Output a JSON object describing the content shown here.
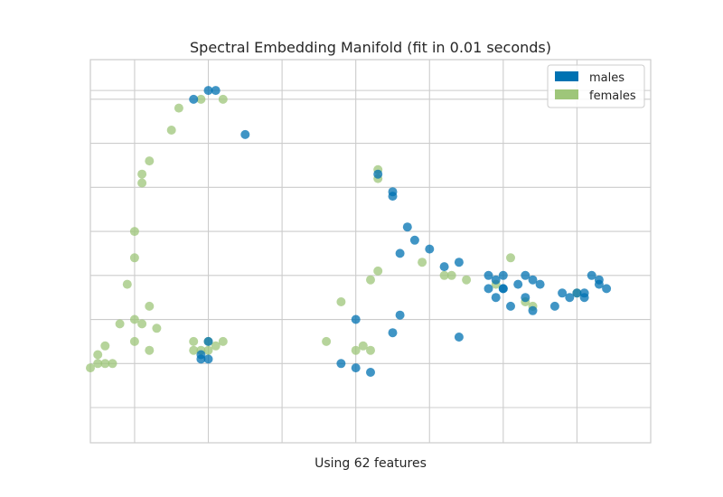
{
  "chart_data": {
    "type": "scatter",
    "title": "Spectral Embedding Manifold (fit in 0.01 seconds)",
    "xlabel": "Using 62 features",
    "ylabel": "",
    "xlim": [
      -1,
      6.6
    ],
    "ylim": [
      -0.9,
      7.8
    ],
    "x_grid_values": [
      -0.4,
      0.6,
      1.6,
      2.6,
      3.6,
      4.6,
      5.6
    ],
    "y_grid_values": [
      -0.1,
      0.9,
      1.9,
      2.9,
      3.9,
      4.9,
      5.9,
      6.9,
      7.1
    ],
    "grid": true,
    "tick_labels_shown": false,
    "legend_position": "top-right",
    "series": [
      {
        "name": "males",
        "color": "#0072b2",
        "points": [
          [
            0.4,
            6.9
          ],
          [
            0.6,
            7.1
          ],
          [
            0.7,
            7.1
          ],
          [
            1.1,
            6.1
          ],
          [
            2.9,
            5.2
          ],
          [
            3.1,
            4.7
          ],
          [
            3.1,
            4.8
          ],
          [
            3.3,
            4.0
          ],
          [
            3.4,
            3.7
          ],
          [
            3.2,
            3.4
          ],
          [
            3.6,
            3.5
          ],
          [
            3.8,
            3.1
          ],
          [
            4.0,
            3.2
          ],
          [
            4.6,
            2.6
          ],
          [
            4.4,
            2.9
          ],
          [
            4.5,
            2.8
          ],
          [
            4.6,
            2.9
          ],
          [
            4.9,
            2.9
          ],
          [
            5.0,
            2.8
          ],
          [
            4.9,
            2.4
          ],
          [
            5.1,
            2.7
          ],
          [
            4.6,
            2.6
          ],
          [
            4.5,
            2.4
          ],
          [
            4.4,
            2.6
          ],
          [
            5.3,
            2.2
          ],
          [
            5.0,
            2.1
          ],
          [
            4.7,
            2.2
          ],
          [
            4.8,
            2.7
          ],
          [
            5.5,
            2.4
          ],
          [
            5.7,
            2.5
          ],
          [
            6.0,
            2.6
          ],
          [
            5.9,
            2.8
          ],
          [
            5.6,
            2.5
          ],
          [
            5.8,
            2.9
          ],
          [
            4.0,
            1.5
          ],
          [
            3.1,
            1.6
          ],
          [
            3.2,
            2.0
          ],
          [
            2.6,
            1.9
          ],
          [
            0.6,
            1.4
          ],
          [
            0.5,
            1.1
          ],
          [
            0.5,
            1.0
          ],
          [
            0.6,
            1.0
          ],
          [
            2.4,
            0.9
          ],
          [
            2.6,
            0.8
          ],
          [
            2.8,
            0.7
          ],
          [
            5.7,
            2.4
          ],
          [
            5.9,
            2.7
          ],
          [
            5.4,
            2.5
          ]
        ]
      },
      {
        "name": "females",
        "color": "#9ec67a",
        "points": [
          [
            0.5,
            6.9
          ],
          [
            0.8,
            6.9
          ],
          [
            0.2,
            6.7
          ],
          [
            0.1,
            6.2
          ],
          [
            -0.2,
            5.5
          ],
          [
            -0.3,
            5.2
          ],
          [
            -0.3,
            5.0
          ],
          [
            -0.4,
            3.9
          ],
          [
            -0.4,
            3.3
          ],
          [
            -0.5,
            2.7
          ],
          [
            -0.2,
            2.2
          ],
          [
            -0.4,
            1.9
          ],
          [
            -0.3,
            1.8
          ],
          [
            -0.6,
            1.8
          ],
          [
            -0.1,
            1.7
          ],
          [
            -0.4,
            1.4
          ],
          [
            -0.8,
            1.3
          ],
          [
            -0.2,
            1.2
          ],
          [
            -0.9,
            1.1
          ],
          [
            -0.9,
            0.9
          ],
          [
            -0.8,
            0.9
          ],
          [
            -0.7,
            0.9
          ],
          [
            -1.0,
            0.8
          ],
          [
            0.4,
            1.4
          ],
          [
            0.6,
            1.4
          ],
          [
            0.7,
            1.3
          ],
          [
            0.4,
            1.2
          ],
          [
            0.5,
            1.2
          ],
          [
            0.8,
            1.4
          ],
          [
            0.6,
            1.2
          ],
          [
            2.2,
            1.4
          ],
          [
            2.4,
            2.3
          ],
          [
            2.6,
            1.2
          ],
          [
            2.7,
            1.3
          ],
          [
            2.8,
            1.2
          ],
          [
            2.8,
            2.8
          ],
          [
            2.9,
            3.0
          ],
          [
            2.9,
            5.3
          ],
          [
            2.9,
            5.1
          ],
          [
            3.5,
            3.2
          ],
          [
            3.8,
            2.9
          ],
          [
            3.9,
            2.9
          ],
          [
            4.1,
            2.8
          ],
          [
            4.5,
            2.7
          ],
          [
            4.7,
            3.3
          ],
          [
            4.9,
            2.3
          ],
          [
            5.0,
            2.2
          ],
          [
            5.6,
            2.5
          ]
        ]
      }
    ],
    "marker_opacity": 0.75,
    "grid_color": "#cccccc",
    "background_color": "#ffffff"
  }
}
